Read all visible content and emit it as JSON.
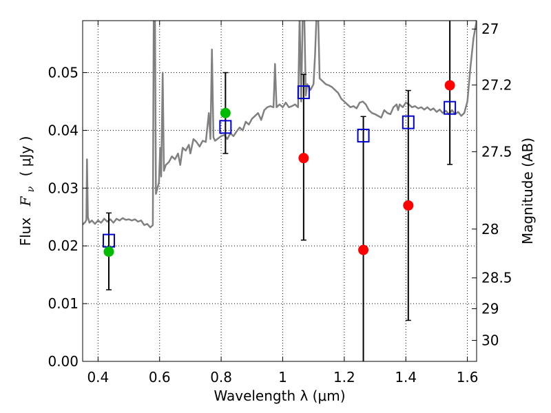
{
  "chart_data": {
    "type": "scatter",
    "xlabel": "Wavelength  λ (μm)",
    "ylabel_prefix": "Flux",
    "ylabel_var": "F",
    "ylabel_sub": "ν",
    "ylabel_units": "(  μJy )",
    "y2label": "Magnitude (AB)",
    "xlim": [
      0.35,
      1.63
    ],
    "ylim": [
      0.0,
      0.059
    ],
    "grid": true,
    "x_ticks": [
      0.4,
      0.6,
      0.8,
      1.0,
      1.2,
      1.4,
      1.6
    ],
    "x_tick_labels": [
      "0.4",
      "0.6",
      "0.8",
      "1",
      "1.2",
      "1.4",
      "1.6"
    ],
    "y_ticks": [
      0.0,
      0.01,
      0.02,
      0.03,
      0.04,
      0.05
    ],
    "y_tick_labels": [
      "0.00",
      "0.01",
      "0.02",
      "0.03",
      "0.04",
      "0.05"
    ],
    "y2_ticks": [
      {
        "label": "27",
        "mag": 27.0
      },
      {
        "label": "27.2",
        "mag": 27.2
      },
      {
        "label": "27.5",
        "mag": 27.5
      },
      {
        "label": "28",
        "mag": 28.0
      },
      {
        "label": "28.5",
        "mag": 28.5
      },
      {
        "label": "29",
        "mag": 29.0
      },
      {
        "label": "30",
        "mag": 30.0
      }
    ],
    "colors": {
      "template": "#808080",
      "box": "#0000cc",
      "red": "#ff0000",
      "green": "#00bb00",
      "errorbar": "#000000",
      "grid": "#000000"
    },
    "template_sed": [
      [
        0.35,
        0.0237
      ],
      [
        0.358,
        0.0241
      ],
      [
        0.362,
        0.0245
      ],
      [
        0.364,
        0.035
      ],
      [
        0.367,
        0.025
      ],
      [
        0.372,
        0.024
      ],
      [
        0.38,
        0.0244
      ],
      [
        0.39,
        0.0238
      ],
      [
        0.4,
        0.0244
      ],
      [
        0.41,
        0.024
      ],
      [
        0.42,
        0.0247
      ],
      [
        0.43,
        0.0242
      ],
      [
        0.44,
        0.0246
      ],
      [
        0.45,
        0.024
      ],
      [
        0.46,
        0.0247
      ],
      [
        0.47,
        0.0244
      ],
      [
        0.48,
        0.0248
      ],
      [
        0.49,
        0.0245
      ],
      [
        0.5,
        0.0246
      ],
      [
        0.51,
        0.0244
      ],
      [
        0.52,
        0.0246
      ],
      [
        0.53,
        0.0242
      ],
      [
        0.54,
        0.0244
      ],
      [
        0.55,
        0.0236
      ],
      [
        0.56,
        0.0238
      ],
      [
        0.57,
        0.0232
      ],
      [
        0.578,
        0.0236
      ],
      [
        0.581,
        0.06
      ],
      [
        0.585,
        0.06
      ],
      [
        0.588,
        0.029
      ],
      [
        0.593,
        0.03
      ],
      [
        0.598,
        0.031
      ],
      [
        0.602,
        0.037
      ],
      [
        0.605,
        0.032
      ],
      [
        0.61,
        0.05
      ],
      [
        0.614,
        0.033
      ],
      [
        0.62,
        0.034
      ],
      [
        0.63,
        0.0345
      ],
      [
        0.64,
        0.0355
      ],
      [
        0.65,
        0.035
      ],
      [
        0.66,
        0.036
      ],
      [
        0.667,
        0.034
      ],
      [
        0.675,
        0.037
      ],
      [
        0.685,
        0.0365
      ],
      [
        0.695,
        0.0375
      ],
      [
        0.7,
        0.036
      ],
      [
        0.71,
        0.0385
      ],
      [
        0.72,
        0.038
      ],
      [
        0.73,
        0.0372
      ],
      [
        0.74,
        0.0382
      ],
      [
        0.75,
        0.038
      ],
      [
        0.76,
        0.043
      ],
      [
        0.765,
        0.0385
      ],
      [
        0.77,
        0.054
      ],
      [
        0.775,
        0.0388
      ],
      [
        0.78,
        0.0382
      ],
      [
        0.79,
        0.0386
      ],
      [
        0.8,
        0.039
      ],
      [
        0.81,
        0.0392
      ],
      [
        0.82,
        0.0385
      ],
      [
        0.83,
        0.0395
      ],
      [
        0.84,
        0.039
      ],
      [
        0.85,
        0.0398
      ],
      [
        0.86,
        0.0405
      ],
      [
        0.87,
        0.04
      ],
      [
        0.88,
        0.0415
      ],
      [
        0.89,
        0.041
      ],
      [
        0.9,
        0.042
      ],
      [
        0.91,
        0.0425
      ],
      [
        0.92,
        0.043
      ],
      [
        0.93,
        0.0418
      ],
      [
        0.94,
        0.0435
      ],
      [
        0.95,
        0.044
      ],
      [
        0.96,
        0.0442
      ],
      [
        0.97,
        0.044
      ],
      [
        0.975,
        0.0515
      ],
      [
        0.98,
        0.044
      ],
      [
        0.99,
        0.0445
      ],
      [
        1.0,
        0.044
      ],
      [
        1.01,
        0.0448
      ],
      [
        1.02,
        0.044
      ],
      [
        1.03,
        0.0442
      ],
      [
        1.04,
        0.0445
      ],
      [
        1.05,
        0.044
      ],
      [
        1.055,
        0.06
      ],
      [
        1.06,
        0.045
      ],
      [
        1.065,
        0.06
      ],
      [
        1.07,
        0.06
      ],
      [
        1.075,
        0.046
      ],
      [
        1.08,
        0.048
      ],
      [
        1.09,
        0.047
      ],
      [
        1.1,
        0.048
      ],
      [
        1.105,
        0.053
      ],
      [
        1.11,
        0.06
      ],
      [
        1.115,
        0.06
      ],
      [
        1.12,
        0.049
      ],
      [
        1.13,
        0.0485
      ],
      [
        1.14,
        0.048
      ],
      [
        1.15,
        0.0478
      ],
      [
        1.16,
        0.0475
      ],
      [
        1.17,
        0.047
      ],
      [
        1.18,
        0.0465
      ],
      [
        1.19,
        0.0455
      ],
      [
        1.2,
        0.045
      ],
      [
        1.21,
        0.0445
      ],
      [
        1.22,
        0.044
      ],
      [
        1.23,
        0.0442
      ],
      [
        1.24,
        0.0438
      ],
      [
        1.25,
        0.0448
      ],
      [
        1.26,
        0.045
      ],
      [
        1.27,
        0.0445
      ],
      [
        1.28,
        0.0435
      ],
      [
        1.29,
        0.043
      ],
      [
        1.3,
        0.0428
      ],
      [
        1.31,
        0.0425
      ],
      [
        1.32,
        0.0422
      ],
      [
        1.33,
        0.0435
      ],
      [
        1.34,
        0.043
      ],
      [
        1.35,
        0.0428
      ],
      [
        1.36,
        0.044
      ],
      [
        1.37,
        0.0445
      ],
      [
        1.375,
        0.0435
      ],
      [
        1.38,
        0.0445
      ],
      [
        1.39,
        0.044
      ],
      [
        1.4,
        0.0448
      ],
      [
        1.41,
        0.0445
      ],
      [
        1.42,
        0.044
      ],
      [
        1.43,
        0.0442
      ],
      [
        1.44,
        0.0438
      ],
      [
        1.45,
        0.044
      ],
      [
        1.46,
        0.0436
      ],
      [
        1.47,
        0.044
      ],
      [
        1.48,
        0.0435
      ],
      [
        1.49,
        0.0438
      ],
      [
        1.5,
        0.0432
      ],
      [
        1.51,
        0.0436
      ],
      [
        1.52,
        0.043
      ],
      [
        1.53,
        0.0434
      ],
      [
        1.54,
        0.0428
      ],
      [
        1.55,
        0.0435
      ],
      [
        1.56,
        0.0428
      ],
      [
        1.57,
        0.0432
      ],
      [
        1.58,
        0.0425
      ],
      [
        1.59,
        0.043
      ],
      [
        1.6,
        0.045
      ],
      [
        1.61,
        0.051
      ],
      [
        1.62,
        0.056
      ],
      [
        1.63,
        0.059
      ]
    ],
    "model_boxes": [
      {
        "x": 0.435,
        "y": 0.0209
      },
      {
        "x": 0.814,
        "y": 0.0406
      },
      {
        "x": 1.068,
        "y": 0.0466
      },
      {
        "x": 1.262,
        "y": 0.0391
      },
      {
        "x": 1.408,
        "y": 0.0414
      },
      {
        "x": 1.543,
        "y": 0.0439
      }
    ],
    "observed_points": [
      {
        "x": 0.435,
        "y": 0.019,
        "yerr_lo": 0.0124,
        "yerr_hi": 0.0257,
        "color": "green"
      },
      {
        "x": 0.814,
        "y": 0.043,
        "yerr_lo": 0.036,
        "yerr_hi": 0.05,
        "color": "green"
      },
      {
        "x": 1.068,
        "y": 0.0352,
        "yerr_lo": 0.021,
        "yerr_hi": 0.0497,
        "color": "red"
      },
      {
        "x": 1.262,
        "y": 0.0193,
        "yerr_lo": 0.0,
        "yerr_hi": 0.0424,
        "color": "red"
      },
      {
        "x": 1.408,
        "y": 0.027,
        "yerr_lo": 0.0071,
        "yerr_hi": 0.0469,
        "color": "red"
      },
      {
        "x": 1.543,
        "y": 0.0478,
        "yerr_lo": 0.0341,
        "yerr_hi": 0.06,
        "color": "red"
      }
    ]
  }
}
